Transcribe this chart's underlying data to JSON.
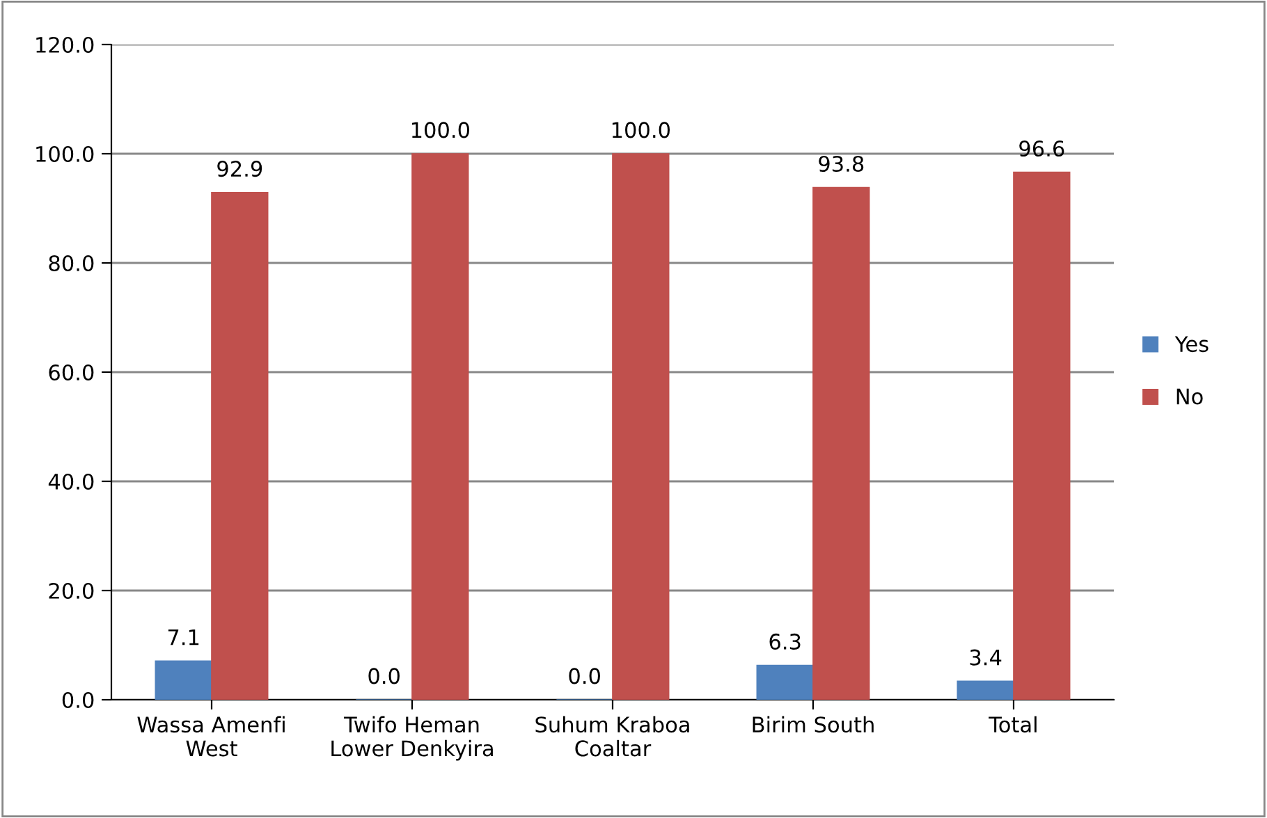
{
  "chart_data": {
    "type": "bar",
    "categories": [
      "Wassa Amenfi\nWest",
      "Twifo Heman\nLower Denkyira",
      "Suhum Kraboa\nCoaltar",
      "Birim South",
      "Total"
    ],
    "series": [
      {
        "name": "Yes",
        "color": "#4f81bd",
        "values": [
          7.1,
          0.0,
          0.0,
          6.3,
          3.4
        ],
        "value_labels": [
          "7.1",
          "0.0",
          "0.0",
          "6.3",
          "3.4"
        ]
      },
      {
        "name": "No",
        "color": "#c0504d",
        "values": [
          92.9,
          100.0,
          100.0,
          93.8,
          96.6
        ],
        "value_labels": [
          "92.9",
          "100.0",
          "100.0",
          "93.8",
          "96.6"
        ]
      }
    ],
    "ylim": [
      0,
      120
    ],
    "yticks": [
      {
        "value": 0,
        "label": "0.0"
      },
      {
        "value": 20,
        "label": "20.0"
      },
      {
        "value": 40,
        "label": "40.0"
      },
      {
        "value": 60,
        "label": "60.0"
      },
      {
        "value": 80,
        "label": "80.0"
      },
      {
        "value": 100,
        "label": "100.0"
      },
      {
        "value": 120,
        "label": "120.0"
      }
    ],
    "grid": "y",
    "legend": "right"
  }
}
